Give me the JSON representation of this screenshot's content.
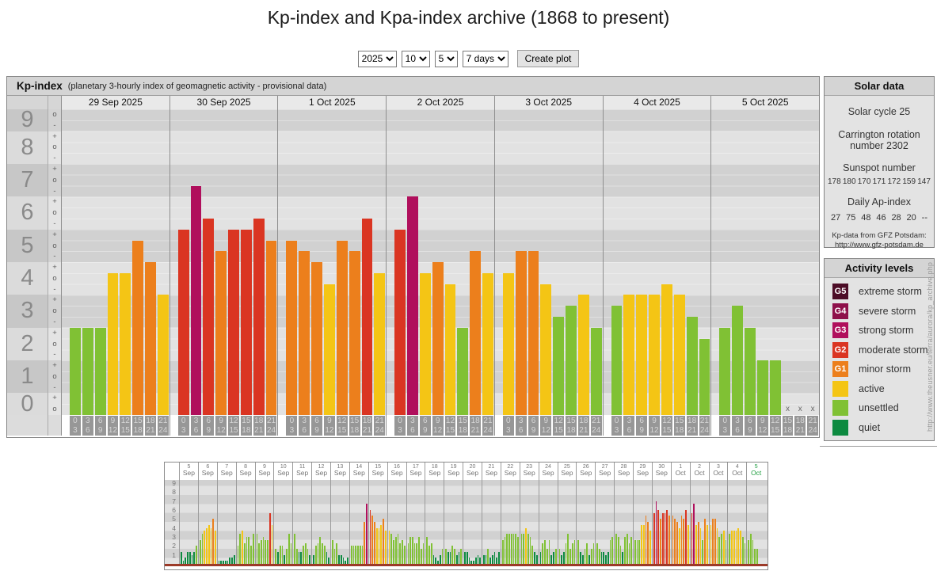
{
  "title": "Kp-index and Kpa-index archive (1868 to present)",
  "controls": {
    "year": "2025",
    "month": "10",
    "day": "5",
    "range": "7 days",
    "create_button": "Create plot"
  },
  "kp_panel": {
    "title": "Kp-index",
    "subtitle": "(planetary 3-hourly index of geomagnetic activity - provisional data)",
    "y_axis": [
      {
        "label": "9",
        "marks": [
          "o",
          "-"
        ]
      },
      {
        "label": "8",
        "marks": [
          "+",
          "o",
          "-"
        ]
      },
      {
        "label": "7",
        "marks": [
          "+",
          "o",
          "-"
        ]
      },
      {
        "label": "6",
        "marks": [
          "+",
          "o",
          "-"
        ]
      },
      {
        "label": "5",
        "marks": [
          "+",
          "o",
          "-"
        ]
      },
      {
        "label": "4",
        "marks": [
          "+",
          "o",
          "-"
        ]
      },
      {
        "label": "3",
        "marks": [
          "+",
          "o",
          "-"
        ]
      },
      {
        "label": "2",
        "marks": [
          "+",
          "o",
          "-"
        ]
      },
      {
        "label": "1",
        "marks": [
          "+",
          "o",
          "-"
        ]
      },
      {
        "label": "0",
        "marks": [
          "+",
          "o"
        ]
      }
    ],
    "hours": [
      [
        "0",
        "3"
      ],
      [
        "3",
        "6"
      ],
      [
        "6",
        "9"
      ],
      [
        "9",
        "12"
      ],
      [
        "12",
        "15"
      ],
      [
        "15",
        "18"
      ],
      [
        "18",
        "21"
      ],
      [
        "21",
        "24"
      ]
    ],
    "no_data_marker": "x"
  },
  "chart_data": [
    {
      "type": "bar",
      "ylabel": "Kp",
      "ylim": [
        0,
        9.33
      ],
      "x_interval_hours": [
        "0-3",
        "3-6",
        "6-9",
        "9-12",
        "12-15",
        "15-18",
        "18-21",
        "21-24"
      ],
      "days": [
        {
          "date": "29 Sep 2025",
          "kp": [
            2.67,
            2.67,
            2.67,
            4.33,
            4.33,
            5.33,
            4.67,
            3.67
          ],
          "kp_labels": [
            "3-",
            "3-",
            "3-",
            "4+",
            "4+",
            "5+",
            "5-",
            "4-"
          ]
        },
        {
          "date": "30 Sep 2025",
          "kp": [
            5.67,
            7,
            6,
            5,
            5.67,
            5.67,
            6,
            5.33
          ],
          "kp_labels": [
            "6-",
            "7o",
            "6o",
            "5o",
            "6-",
            "6-",
            "6o",
            "5+"
          ]
        },
        {
          "date": "1 Oct 2025",
          "kp": [
            5.33,
            5,
            4.67,
            4,
            5.33,
            5,
            6,
            4.33
          ],
          "kp_labels": [
            "5+",
            "5o",
            "5-",
            "4o",
            "5+",
            "5o",
            "6o",
            "4+"
          ]
        },
        {
          "date": "2 Oct 2025",
          "kp": [
            5.67,
            6.67,
            4.33,
            4.67,
            4,
            2.67,
            5,
            4.33
          ],
          "kp_labels": [
            "6-",
            "7-",
            "4+",
            "5-",
            "4o",
            "3-",
            "5o",
            "4+"
          ]
        },
        {
          "date": "3 Oct 2025",
          "kp": [
            4.33,
            5,
            5,
            4,
            3,
            3.33,
            3.67,
            2.67
          ],
          "kp_labels": [
            "4+",
            "5o",
            "5o",
            "4o",
            "3o",
            "3+",
            "4-",
            "3-"
          ]
        },
        {
          "date": "4 Oct 2025",
          "kp": [
            3.33,
            3.67,
            3.67,
            3.67,
            4,
            3.67,
            3,
            2.33
          ],
          "kp_labels": [
            "3+",
            "4-",
            "4-",
            "4-",
            "4o",
            "4-",
            "3o",
            "2+"
          ]
        },
        {
          "date": "5 Oct 2025",
          "kp": [
            2.67,
            3.33,
            2.67,
            1.67,
            1.67,
            null,
            null,
            null
          ],
          "kp_labels": [
            "3-",
            "3+",
            "3-",
            "2-",
            "2-",
            "x",
            "x",
            "x"
          ]
        }
      ]
    },
    {
      "type": "bar",
      "ylim": [
        0,
        9.33
      ],
      "y_ticks": [
        "9",
        "8",
        "7",
        "6",
        "5",
        "4",
        "3",
        "2",
        "1"
      ],
      "days": [
        {
          "d": "5",
          "m": "Sep",
          "v": [
            1.33,
            0.33,
            0.67,
            1.33,
            1.33,
            1,
            1.33,
            2
          ]
        },
        {
          "d": "6",
          "m": "Sep",
          "v": [
            2.67,
            3.33,
            3.67,
            4,
            4.33,
            4,
            5,
            3.67
          ]
        },
        {
          "d": "7",
          "m": "Sep",
          "v": [
            0.33,
            0.33,
            0.33,
            0.33,
            0.33,
            0.67,
            0.67,
            1
          ]
        },
        {
          "d": "8",
          "m": "Sep",
          "v": [
            2,
            3.33,
            3.67,
            2.33,
            3,
            3,
            2,
            3.33
          ]
        },
        {
          "d": "9",
          "m": "Sep",
          "v": [
            3.33,
            2.33,
            2.67,
            3,
            2.67,
            2.67,
            5.67,
            4.33
          ]
        },
        {
          "d": "10",
          "m": "Sep",
          "v": [
            1.67,
            1.33,
            2,
            2,
            1,
            1.67,
            3.33,
            2.33
          ]
        },
        {
          "d": "11",
          "m": "Sep",
          "v": [
            3.33,
            1.67,
            1.33,
            1.33,
            2,
            2.33,
            1.67,
            1
          ]
        },
        {
          "d": "12",
          "m": "Sep",
          "v": [
            1,
            2,
            2.33,
            3,
            2.33,
            2,
            1.33,
            0.67
          ]
        },
        {
          "d": "13",
          "m": "Sep",
          "v": [
            2.67,
            1.67,
            2.33,
            1,
            1,
            0.67,
            0.33,
            0.67
          ]
        },
        {
          "d": "14",
          "m": "Sep",
          "v": [
            2,
            2,
            2,
            2,
            2,
            2,
            4.67,
            6.67
          ]
        },
        {
          "d": "15",
          "m": "Sep",
          "v": [
            6,
            5.33,
            4.67,
            4,
            4,
            4.33,
            5,
            3.67
          ]
        },
        {
          "d": "16",
          "m": "Sep",
          "v": [
            3.67,
            3.33,
            2.67,
            3,
            3.33,
            2.33,
            2.67,
            2
          ]
        },
        {
          "d": "17",
          "m": "Sep",
          "v": [
            2.33,
            3,
            3,
            2.33,
            2.33,
            3,
            1.67,
            2.33
          ]
        },
        {
          "d": "18",
          "m": "Sep",
          "v": [
            3,
            2,
            2.33,
            1,
            0.67,
            0.33,
            1,
            1.67
          ]
        },
        {
          "d": "19",
          "m": "Sep",
          "v": [
            1.67,
            1.33,
            1.33,
            2,
            1.67,
            1,
            1.33,
            1.67
          ]
        },
        {
          "d": "20",
          "m": "Sep",
          "v": [
            1.33,
            1.33,
            0.67,
            0.33,
            0.33,
            0.67,
            1,
            0.67
          ]
        },
        {
          "d": "21",
          "m": "Sep",
          "v": [
            1,
            1,
            1.67,
            0.67,
            1,
            1.33,
            0.67,
            1.33
          ]
        },
        {
          "d": "22",
          "m": "Sep",
          "v": [
            2.67,
            3,
            3.33,
            3.33,
            3.33,
            3.33,
            3.33,
            3
          ]
        },
        {
          "d": "23",
          "m": "Sep",
          "v": [
            3.33,
            3.33,
            4,
            3.33,
            3,
            2,
            1.33,
            1
          ]
        },
        {
          "d": "24",
          "m": "Sep",
          "v": [
            1.33,
            2.33,
            2.67,
            1.67,
            2.67,
            1,
            1.33,
            1.67
          ]
        },
        {
          "d": "25",
          "m": "Sep",
          "v": [
            1.67,
            1,
            1.33,
            2.33,
            3.33,
            1.67,
            2.33,
            2.67
          ]
        },
        {
          "d": "26",
          "m": "Sep",
          "v": [
            2.67,
            1.33,
            1,
            1.67,
            2.33,
            1,
            1.67,
            2.33
          ]
        },
        {
          "d": "27",
          "m": "Sep",
          "v": [
            2.33,
            1.67,
            1.33,
            1.33,
            1,
            1.33,
            2.67,
            3
          ]
        },
        {
          "d": "28",
          "m": "Sep",
          "v": [
            3.33,
            3,
            2,
            1.33,
            3,
            3.33,
            2.33,
            3
          ]
        },
        {
          "d": "29",
          "m": "Sep",
          "v": [
            2.67,
            2.67,
            2.67,
            4.33,
            4.33,
            5.33,
            4.67,
            3.67
          ]
        },
        {
          "d": "30",
          "m": "Sep",
          "v": [
            5.67,
            7,
            6,
            5,
            5.67,
            5.67,
            6,
            5.33
          ]
        },
        {
          "d": "1",
          "m": "Oct",
          "v": [
            5.33,
            5,
            4.67,
            4,
            5.33,
            5,
            6,
            4.33
          ]
        },
        {
          "d": "2",
          "m": "Oct",
          "v": [
            5.67,
            6.67,
            4.33,
            4.67,
            4,
            2.67,
            5,
            4.33
          ]
        },
        {
          "d": "3",
          "m": "Oct",
          "v": [
            4.33,
            5,
            5,
            4,
            3,
            3.33,
            3.67,
            2.67
          ]
        },
        {
          "d": "4",
          "m": "Oct",
          "v": [
            3.33,
            3.67,
            3.67,
            3.67,
            4,
            3.67,
            3,
            2.33
          ]
        },
        {
          "d": "5",
          "m": "Oct",
          "v": [
            2.67,
            3.33,
            2.67,
            1.67,
            1.67
          ],
          "today": true
        }
      ]
    }
  ],
  "solar_panel": {
    "title": "Solar data",
    "cycle": "Solar cycle 25",
    "carrington_line1": "Carrington rotation",
    "carrington_line2": "number 2302",
    "sunspot_title": "Sunspot number",
    "sunspot_values": [
      "178",
      "180",
      "170",
      "171",
      "172",
      "159",
      "147"
    ],
    "ap_title": "Daily Ap-index",
    "ap_values": [
      "27",
      "75",
      "48",
      "46",
      "28",
      "20",
      "--"
    ],
    "source_line1": "Kp-data from GFZ Potsdam:",
    "source_line2": "http://www.gfz-potsdam.de"
  },
  "activity_panel": {
    "title": "Activity levels",
    "items": [
      {
        "code": "G5",
        "label": "extreme storm",
        "key": "g5"
      },
      {
        "code": "G4",
        "label": "severe storm",
        "key": "g4"
      },
      {
        "code": "G3",
        "label": "strong storm",
        "key": "g3"
      },
      {
        "code": "G2",
        "label": "moderate storm",
        "key": "g2"
      },
      {
        "code": "G1",
        "label": "minor storm",
        "key": "g1"
      },
      {
        "code": "",
        "label": "active",
        "key": "active"
      },
      {
        "code": "",
        "label": "unsettled",
        "key": "unsettled"
      },
      {
        "code": "",
        "label": "quiet",
        "key": "quiet"
      }
    ]
  },
  "watermark": "http://www.theusner.eu/terra/aurora/kp_archive.php",
  "colors": {
    "g5": "#4c0c26",
    "g4": "#8e104a",
    "g3": "#b00f5c",
    "g2": "#da3522",
    "g1": "#ec7f1c",
    "active": "#f4c515",
    "unsettled": "#80c134",
    "quiet": "#0d8a40",
    "thresholds": [
      [
        8.5,
        "g5"
      ],
      [
        7.5,
        "g4"
      ],
      [
        6.5,
        "g3"
      ],
      [
        5.5,
        "g2"
      ],
      [
        4.5,
        "g1"
      ],
      [
        3.5,
        "active"
      ],
      [
        1.6,
        "unsettled"
      ],
      [
        0,
        "quiet"
      ]
    ]
  }
}
